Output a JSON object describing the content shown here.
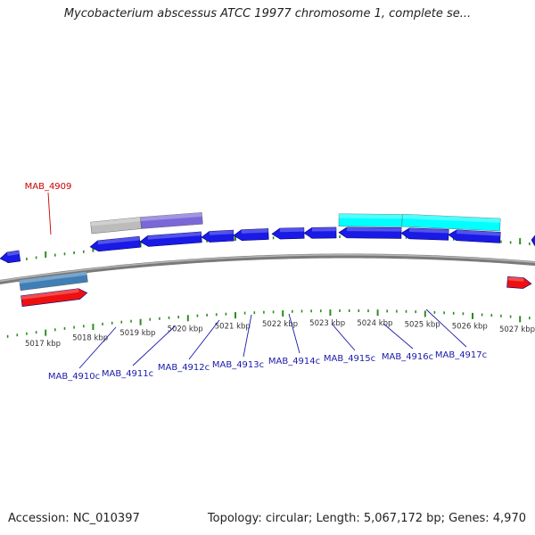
{
  "title": "Mycobacterium abscessus ATCC 19977 chromosome 1, complete se...",
  "colors": {
    "backbone": "#7a7a7a",
    "tick": "#2e8b22",
    "gene_forward": "#ee1010",
    "gene_reverse": "#1a1ae6",
    "cds_blue": "#3f7fb5",
    "cds_cyan": "#00ffff",
    "cds_grey": "#bcbcbc",
    "cds_purple": "#7a68d8",
    "label_forward": "#cc0000",
    "label_reverse": "#1a1aaa"
  },
  "scale": {
    "kbp_labels": [
      "5017 kbp",
      "5018 kbp",
      "5019 kbp",
      "5020 kbp",
      "5021 kbp",
      "5022 kbp",
      "5023 kbp",
      "5024 kbp",
      "5025 kbp",
      "5026 kbp",
      "5027 kbp"
    ],
    "kbp_values": [
      5017,
      5018,
      5019,
      5020,
      5021,
      5022,
      5023,
      5024,
      5025,
      5026,
      5027
    ]
  },
  "genes": [
    {
      "name": "MAB_4909",
      "strand": "+",
      "start_kbp": 5016.2,
      "end_kbp": 5017.6
    },
    {
      "name": "MAB_4910c",
      "strand": "-",
      "start_kbp": 5018.3,
      "end_kbp": 5019.3
    },
    {
      "name": "MAB_4911c",
      "strand": "-",
      "start_kbp": 5019.3,
      "end_kbp": 5020.6
    },
    {
      "name": "MAB_4912c",
      "strand": "-",
      "start_kbp": 5020.6,
      "end_kbp": 5021.3
    },
    {
      "name": "MAB_4913c",
      "strand": "-",
      "start_kbp": 5021.3,
      "end_kbp": 5022.0
    },
    {
      "name": "MAB_4914c",
      "strand": "-",
      "start_kbp": 5022.3,
      "end_kbp": 5022.9
    },
    {
      "name": "MAB_4915c",
      "strand": "-",
      "start_kbp": 5022.9,
      "end_kbp": 5023.6
    },
    {
      "name": "MAB_4916c",
      "strand": "-",
      "start_kbp": 5023.6,
      "end_kbp": 5024.9
    },
    {
      "name": "MAB_4917c",
      "strand": "-",
      "start_kbp": 5024.9,
      "end_kbp": 5025.9
    }
  ],
  "footer": {
    "accession": "Accession: NC_010397",
    "topology": "Topology: circular; Length: 5,067,172 bp; Genes: 4,970"
  }
}
